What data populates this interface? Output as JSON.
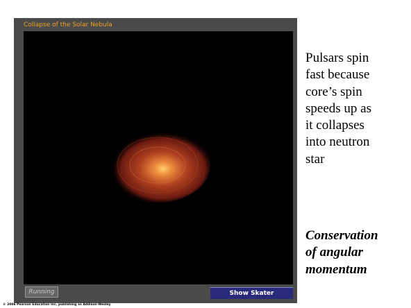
{
  "animation": {
    "title": "Collapse of the Solar Nebula",
    "status_button": "Running",
    "action_button": "Show Skater"
  },
  "text": {
    "body_lines": [
      "Pulsars spin",
      "fast because",
      "core’s spin",
      "speeds up as",
      "it collapses",
      "into neutron",
      "star"
    ],
    "emphasis_lines": [
      "Conservation",
      "of angular",
      "momentum"
    ]
  },
  "footer": {
    "copyright": "© 2006 Pearson Education Inc, publishing as Addison-Wesley"
  }
}
